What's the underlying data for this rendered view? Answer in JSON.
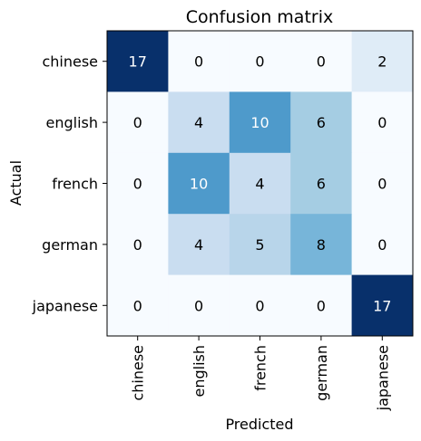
{
  "chart_data": {
    "type": "heatmap",
    "title": "Confusion matrix",
    "xlabel": "Predicted",
    "ylabel": "Actual",
    "x_categories": [
      "chinese",
      "english",
      "french",
      "german",
      "japanese"
    ],
    "y_categories": [
      "chinese",
      "english",
      "french",
      "german",
      "japanese"
    ],
    "values": [
      [
        17,
        0,
        0,
        0,
        2
      ],
      [
        0,
        4,
        10,
        6,
        0
      ],
      [
        0,
        10,
        4,
        6,
        0
      ],
      [
        0,
        4,
        5,
        8,
        0
      ],
      [
        0,
        0,
        0,
        0,
        17
      ]
    ],
    "colormap": "Blues",
    "value_range": [
      0,
      17
    ],
    "cell_labels": true,
    "grid": false
  }
}
